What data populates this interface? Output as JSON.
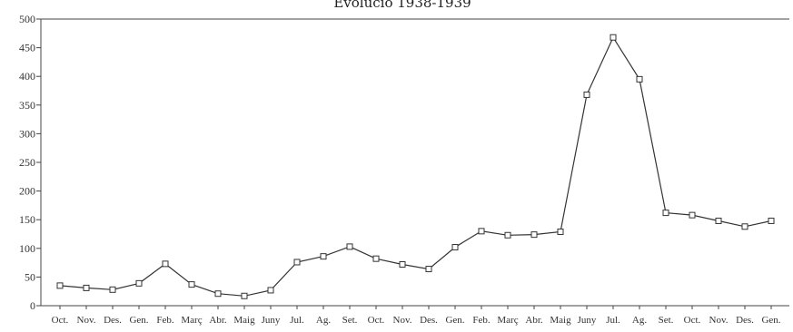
{
  "chart_data": {
    "type": "line",
    "title": "Evolució 1938-1939",
    "xlabel": "",
    "ylabel": "",
    "ylim": [
      0,
      500
    ],
    "yticks": [
      0,
      50,
      100,
      150,
      200,
      250,
      300,
      350,
      400,
      450,
      500
    ],
    "grid": false,
    "marker": "square",
    "categories": [
      "Oct.",
      "Nov.",
      "Des.",
      "Gen.",
      "Feb.",
      "Març",
      "Abr.",
      "Maig",
      "Juny",
      "Jul.",
      "Ag.",
      "Set.",
      "Oct.",
      "Nov.",
      "Des.",
      "Gen.",
      "Feb.",
      "Març",
      "Abr.",
      "Maig",
      "Juny",
      "Jul.",
      "Ag.",
      "Set.",
      "Oct.",
      "Nov.",
      "Des.",
      "Gen."
    ],
    "series": [
      {
        "values": [
          35,
          31,
          28,
          39,
          73,
          37,
          21,
          17,
          27,
          76,
          86,
          103,
          82,
          72,
          64,
          102,
          130,
          123,
          124,
          129,
          368,
          468,
          395,
          162,
          158,
          148,
          138,
          148
        ]
      }
    ]
  }
}
